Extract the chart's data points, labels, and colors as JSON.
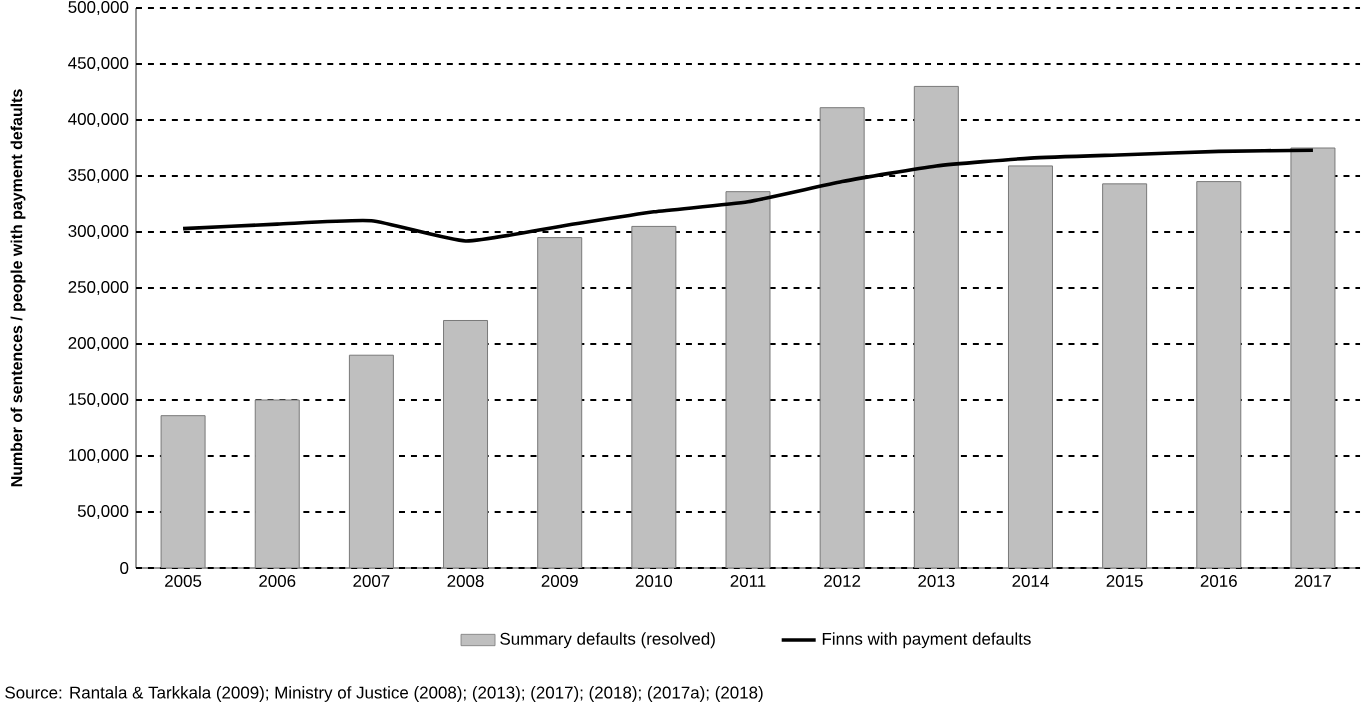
{
  "chart_data": {
    "type": "bar",
    "ylabel": "Number of sentences / people with payment defaults",
    "categories": [
      "2005",
      "2006",
      "2007",
      "2008",
      "2009",
      "2010",
      "2011",
      "2012",
      "2013",
      "2014",
      "2015",
      "2016",
      "2017"
    ],
    "series": [
      {
        "name": "Summary defaults (resolved)",
        "type": "bar",
        "color": "#bfbfbf",
        "values": [
          136000,
          150000,
          190000,
          221000,
          295000,
          305000,
          336000,
          411000,
          430000,
          359000,
          343000,
          345000,
          375000
        ]
      },
      {
        "name": "Finns with payment defaults",
        "type": "line",
        "color": "#000000",
        "values": [
          303000,
          307000,
          310000,
          292000,
          305000,
          318000,
          327000,
          345000,
          359000,
          366000,
          369000,
          372000,
          373000
        ]
      }
    ],
    "ylim": [
      0,
      500000
    ],
    "yticks": [
      {
        "value": 0,
        "label": "0"
      },
      {
        "value": 50000,
        "label": "50,000"
      },
      {
        "value": 100000,
        "label": "100,000"
      },
      {
        "value": 150000,
        "label": "150,000"
      },
      {
        "value": 200000,
        "label": "200,000"
      },
      {
        "value": 250000,
        "label": "250,000"
      },
      {
        "value": 300000,
        "label": "300,000"
      },
      {
        "value": 350000,
        "label": "350,000"
      },
      {
        "value": 400000,
        "label": "400,000"
      },
      {
        "value": 450000,
        "label": "450,000"
      },
      {
        "value": 500000,
        "label": "500,000"
      }
    ],
    "grid": "y",
    "legend": "bottom",
    "annotations": [
      "Source: Rantala & Tarkkala (2009); Ministry of Justice (2008); (2013); (2017); (2018); (2017a); (2018)"
    ]
  }
}
